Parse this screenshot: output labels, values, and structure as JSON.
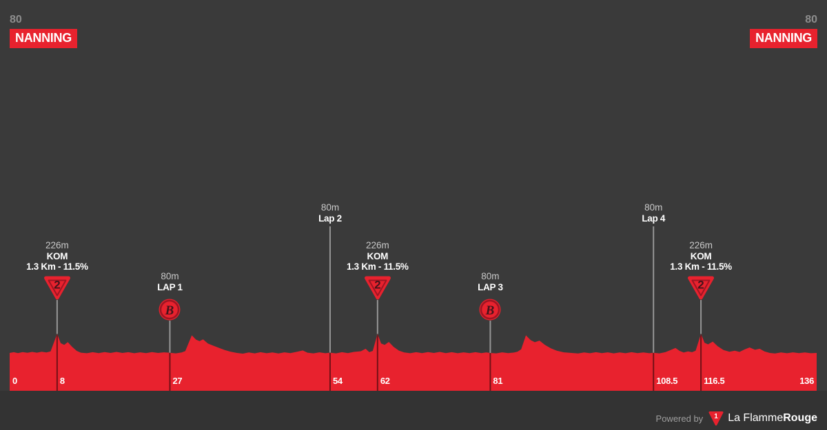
{
  "header": {
    "start": {
      "elevation": "80",
      "name": "NANNING"
    },
    "finish": {
      "elevation": "80",
      "name": "NANNING"
    }
  },
  "footer": {
    "powered_by": "Powered by",
    "logo_number": "1",
    "brand_regular": "La Flamme",
    "brand_bold": "Rouge"
  },
  "colors": {
    "background": "#3a3a3a",
    "footer_strip": "#333333",
    "profile_red": "#E8222E",
    "icon_stroke_dark_red": "#9E1523",
    "icon_glyph_dark": "#45141B",
    "marker_line_gray": "#969696",
    "marker_line_on_red": "rgba(0,0,0,0.5)",
    "dim_text": "#c9c9c9",
    "axis_text": "#ffffff",
    "elevation_label_gray": "#8d8d8d"
  },
  "chart_data": {
    "type": "area",
    "x_unit": "km",
    "y_unit": "m",
    "x_range": [
      0,
      136
    ],
    "start": {
      "location": "NANNING",
      "elevation_m": 80
    },
    "finish": {
      "location": "NANNING",
      "elevation_m": 80
    },
    "axis_ticks": [
      {
        "km": 0,
        "label": "0"
      },
      {
        "km": 8,
        "label": "8"
      },
      {
        "km": 27,
        "label": "27"
      },
      {
        "km": 54,
        "label": "54"
      },
      {
        "km": 62,
        "label": "62"
      },
      {
        "km": 81,
        "label": "81"
      },
      {
        "km": 108.5,
        "label": "108.5"
      },
      {
        "km": 116.5,
        "label": "116.5"
      },
      {
        "km": 136,
        "label": "136"
      }
    ],
    "markers": [
      {
        "km": 8,
        "type": "kom",
        "icon_label": "2",
        "lines": [
          "226m",
          "KOM",
          "1.3 Km - 11.5%"
        ]
      },
      {
        "km": 27,
        "type": "lap",
        "icon_label": "B",
        "lines": [
          "80m",
          "LAP 1"
        ]
      },
      {
        "km": 54,
        "type": "line",
        "lines": [
          "80m",
          "Lap 2"
        ]
      },
      {
        "km": 62,
        "type": "kom",
        "icon_label": "2",
        "lines": [
          "226m",
          "KOM",
          "1.3 Km - 11.5%"
        ]
      },
      {
        "km": 81,
        "type": "lap",
        "icon_label": "B",
        "lines": [
          "80m",
          "LAP 3"
        ]
      },
      {
        "km": 108.5,
        "type": "line",
        "lines": [
          "80m",
          "Lap 4"
        ]
      },
      {
        "km": 116.5,
        "type": "kom",
        "icon_label": "2",
        "lines": [
          "226m",
          "KOM",
          "1.3 Km - 11.5%"
        ]
      }
    ],
    "profile_km_elevation": [
      [
        0,
        80
      ],
      [
        0.7,
        86
      ],
      [
        1.4,
        79
      ],
      [
        2.2,
        87
      ],
      [
        3,
        81
      ],
      [
        3.8,
        88
      ],
      [
        4.6,
        82
      ],
      [
        5.4,
        89
      ],
      [
        6.2,
        84
      ],
      [
        6.9,
        92
      ],
      [
        8,
        226
      ],
      [
        8.6,
        155
      ],
      [
        9.2,
        142
      ],
      [
        9.8,
        163
      ],
      [
        10.5,
        128
      ],
      [
        11.3,
        96
      ],
      [
        12,
        82
      ],
      [
        13,
        78
      ],
      [
        14,
        86
      ],
      [
        15,
        79
      ],
      [
        16,
        87
      ],
      [
        17,
        80
      ],
      [
        18,
        88
      ],
      [
        19,
        80
      ],
      [
        20,
        86
      ],
      [
        21,
        78
      ],
      [
        22,
        85
      ],
      [
        23,
        79
      ],
      [
        24,
        87
      ],
      [
        25,
        80
      ],
      [
        26,
        85
      ],
      [
        27,
        81
      ],
      [
        28,
        77
      ],
      [
        29,
        84
      ],
      [
        29.6,
        95
      ],
      [
        30.7,
        215
      ],
      [
        31.4,
        182
      ],
      [
        32,
        170
      ],
      [
        32.6,
        184
      ],
      [
        33.4,
        152
      ],
      [
        34.3,
        136
      ],
      [
        35.2,
        120
      ],
      [
        36.2,
        103
      ],
      [
        37.2,
        90
      ],
      [
        38.3,
        80
      ],
      [
        39.3,
        75
      ],
      [
        40.3,
        84
      ],
      [
        41.3,
        77
      ],
      [
        42.3,
        86
      ],
      [
        43.3,
        78
      ],
      [
        44.3,
        84
      ],
      [
        45.3,
        76
      ],
      [
        46.3,
        85
      ],
      [
        47.3,
        79
      ],
      [
        48.3,
        88
      ],
      [
        49.4,
        99
      ],
      [
        50.2,
        82
      ],
      [
        51.2,
        77
      ],
      [
        52.2,
        85
      ],
      [
        53.2,
        78
      ],
      [
        54,
        82
      ],
      [
        55,
        77
      ],
      [
        56,
        86
      ],
      [
        57,
        79
      ],
      [
        58,
        88
      ],
      [
        59.2,
        93
      ],
      [
        60,
        112
      ],
      [
        60.6,
        86
      ],
      [
        61.2,
        96
      ],
      [
        62,
        226
      ],
      [
        62.6,
        152
      ],
      [
        63.2,
        142
      ],
      [
        63.9,
        164
      ],
      [
        64.7,
        127
      ],
      [
        65.6,
        98
      ],
      [
        66.5,
        84
      ],
      [
        67.5,
        78
      ],
      [
        68.5,
        86
      ],
      [
        69.5,
        79
      ],
      [
        70.5,
        87
      ],
      [
        71.5,
        80
      ],
      [
        72.5,
        88
      ],
      [
        73.5,
        79
      ],
      [
        74.5,
        86
      ],
      [
        75.5,
        78
      ],
      [
        76.5,
        85
      ],
      [
        77.5,
        79
      ],
      [
        78.5,
        86
      ],
      [
        79.5,
        79
      ],
      [
        80.3,
        84
      ],
      [
        81,
        80
      ],
      [
        82,
        77
      ],
      [
        83,
        85
      ],
      [
        84,
        79
      ],
      [
        85,
        83
      ],
      [
        85.6,
        90
      ],
      [
        86.2,
        108
      ],
      [
        87,
        215
      ],
      [
        87.8,
        178
      ],
      [
        88.5,
        162
      ],
      [
        89.3,
        174
      ],
      [
        90.2,
        142
      ],
      [
        91.2,
        116
      ],
      [
        92.2,
        97
      ],
      [
        93.4,
        85
      ],
      [
        94.7,
        80
      ],
      [
        95.8,
        76
      ],
      [
        96.8,
        84
      ],
      [
        97.8,
        78
      ],
      [
        98.8,
        86
      ],
      [
        99.8,
        79
      ],
      [
        100.8,
        85
      ],
      [
        101.8,
        77
      ],
      [
        102.8,
        84
      ],
      [
        103.8,
        78
      ],
      [
        104.8,
        86
      ],
      [
        105.8,
        79
      ],
      [
        106.8,
        84
      ],
      [
        107.8,
        78
      ],
      [
        108.5,
        81
      ],
      [
        109.5,
        77
      ],
      [
        110.5,
        86
      ],
      [
        111.5,
        104
      ],
      [
        112.2,
        118
      ],
      [
        112.9,
        96
      ],
      [
        113.6,
        83
      ],
      [
        114.3,
        92
      ],
      [
        115,
        86
      ],
      [
        115.6,
        97
      ],
      [
        116.5,
        226
      ],
      [
        117.1,
        158
      ],
      [
        117.7,
        146
      ],
      [
        118.5,
        167
      ],
      [
        119.3,
        132
      ],
      [
        120.3,
        102
      ],
      [
        121.3,
        89
      ],
      [
        122.2,
        97
      ],
      [
        123,
        88
      ],
      [
        123.9,
        108
      ],
      [
        124.7,
        122
      ],
      [
        125.6,
        104
      ],
      [
        126.4,
        112
      ],
      [
        127.2,
        92
      ],
      [
        128.1,
        80
      ],
      [
        129,
        76
      ],
      [
        130,
        84
      ],
      [
        131,
        78
      ],
      [
        132,
        85
      ],
      [
        133,
        79
      ],
      [
        134,
        84
      ],
      [
        135,
        78
      ],
      [
        136,
        80
      ]
    ]
  }
}
